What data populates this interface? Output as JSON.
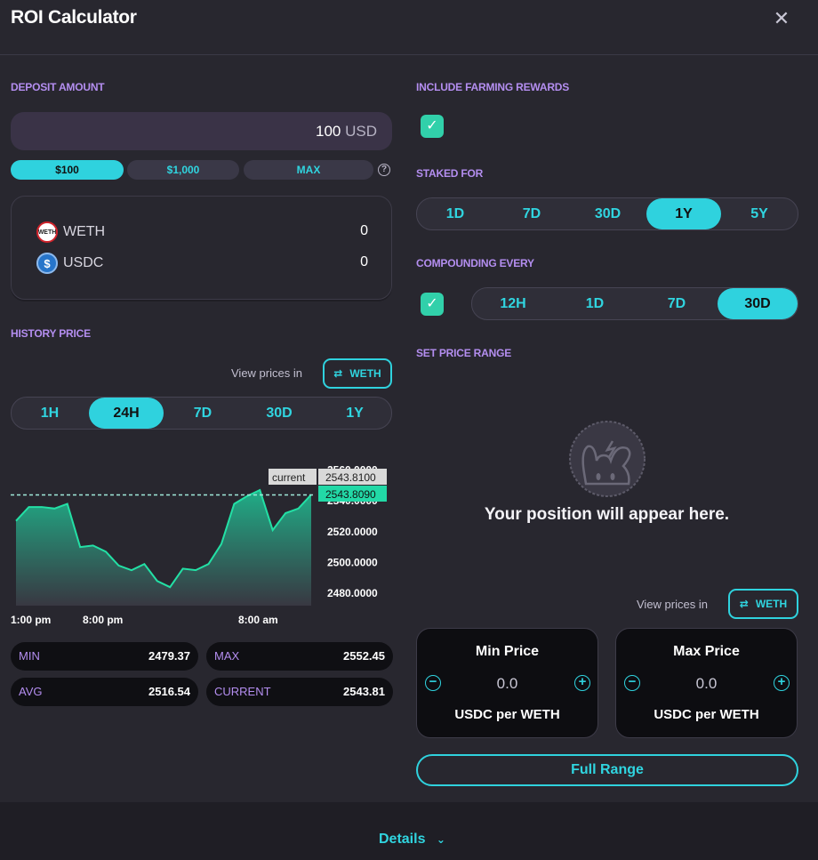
{
  "header": {
    "title": "ROI Calculator",
    "close_icon": "close-icon"
  },
  "deposit": {
    "section_label": "DEPOSIT AMOUNT",
    "amount": "100",
    "currency": "USD",
    "quick_options": [
      "$100",
      "$1,000",
      "MAX"
    ],
    "selected_option": "$100",
    "help_glyph": "?"
  },
  "tokens": [
    {
      "symbol": "WETH",
      "amount": "0",
      "icon": "weth-icon",
      "icon_text": "WETH"
    },
    {
      "symbol": "USDC",
      "amount": "0",
      "icon": "usdc-icon",
      "icon_text": "$"
    }
  ],
  "history": {
    "section_label": "HISTORY PRICE",
    "view_prices_label": "View prices in",
    "view_token": "WETH",
    "periods": [
      "1H",
      "24H",
      "7D",
      "30D",
      "1Y"
    ],
    "selected_period": "24H"
  },
  "stats": [
    {
      "label": "MIN",
      "value": "2479.37"
    },
    {
      "label": "MAX",
      "value": "2552.45"
    },
    {
      "label": "AVG",
      "value": "2516.54"
    },
    {
      "label": "CURRENT",
      "value": "2543.81"
    }
  ],
  "farming": {
    "section_label": "INCLUDE FARMING REWARDS",
    "checked": true,
    "check_glyph": "✓"
  },
  "staked": {
    "section_label": "STAKED FOR",
    "options": [
      "1D",
      "7D",
      "30D",
      "1Y",
      "5Y"
    ],
    "selected": "1Y"
  },
  "compounding": {
    "section_label": "COMPOUNDING EVERY",
    "checked": true,
    "options": [
      "12H",
      "1D",
      "7D",
      "30D"
    ],
    "selected": "30D"
  },
  "price_range": {
    "section_label": "SET PRICE RANGE",
    "empty_message": "Your position will appear here.",
    "view_prices_label": "View prices in",
    "view_token": "WETH",
    "min": {
      "title": "Min Price",
      "value": "0.0",
      "unit": "USDC per WETH"
    },
    "max": {
      "title": "Max Price",
      "value": "0.0",
      "unit": "USDC per WETH"
    },
    "minus_glyph": "−",
    "plus_glyph": "+",
    "full_range_label": "Full Range"
  },
  "footer": {
    "details_label": "Details",
    "chevron_glyph": "⌄"
  },
  "colors": {
    "accent": "#2fd2de",
    "section_label": "#b48ef0",
    "chart_line": "#23e0a5",
    "checkbox": "#31d0aa",
    "background": "#28272f"
  },
  "chart_data": {
    "type": "area",
    "x_labels": [
      "1:00 pm",
      "8:00 pm",
      "8:00 am"
    ],
    "y_ticks": [
      "2560.0000",
      "2540.0000",
      "2520.0000",
      "2500.0000",
      "2480.0000"
    ],
    "ylim": [
      2472,
      2562
    ],
    "values": [
      2527,
      2536,
      2536,
      2535,
      2538,
      2510,
      2511,
      2507,
      2498,
      2495,
      2499,
      2488,
      2484,
      2496,
      2495,
      2499,
      2512,
      2538,
      2543,
      2547,
      2521,
      2532,
      2535,
      2544
    ],
    "current_label": "current",
    "current_value": "2543.8100",
    "hover_value": "2543.8090",
    "reference_y": 2543.81
  }
}
